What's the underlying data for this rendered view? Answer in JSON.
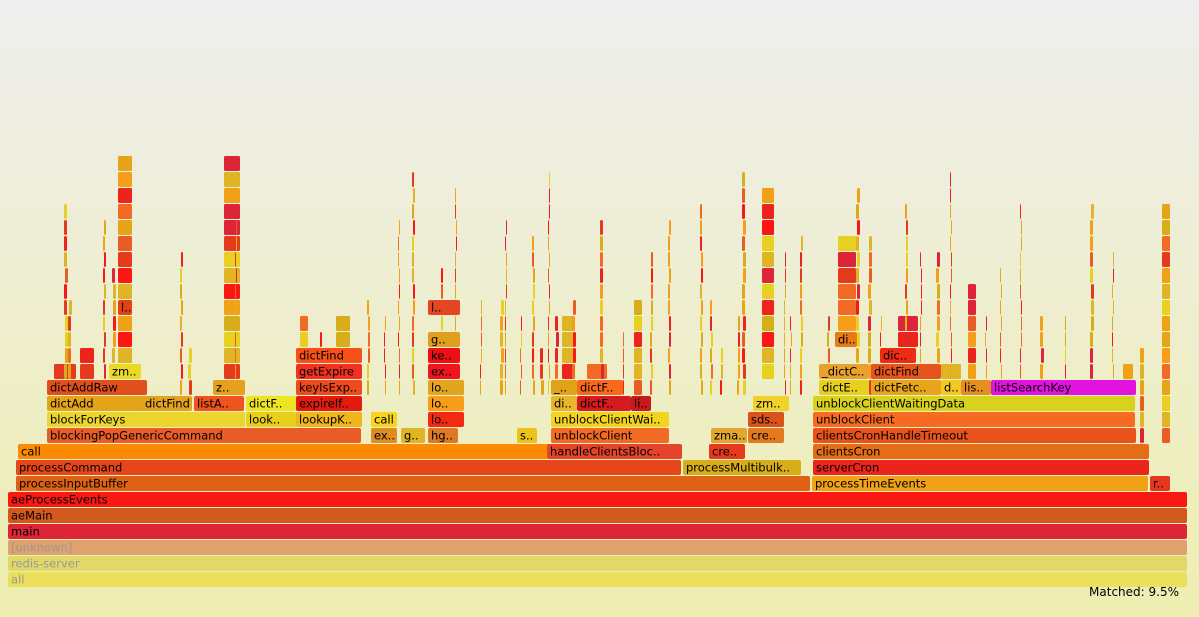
{
  "graph": {
    "matched": "Matched: 9.5%",
    "frames": [
      {
        "label": "all",
        "color": "#ecdf5b",
        "dim": true
      },
      {
        "label": "redis-server",
        "color": "#e0d96a",
        "dim": true
      },
      {
        "label": "[unknown]",
        "color": "#e0a16c",
        "dim": true
      },
      {
        "label": "main",
        "color": "#dd2537"
      },
      {
        "label": "aeMain",
        "color": "#d2591d"
      },
      {
        "label": "aeProcessEvents",
        "color": "#fb1714"
      },
      {
        "label": "processInputBuffer",
        "color": "#df6113"
      },
      {
        "label": "processTimeEvents",
        "color": "#f0a116"
      },
      {
        "label": "r..",
        "color": "#e5361e"
      },
      {
        "label": "processCommand",
        "color": "#e7461b"
      },
      {
        "label": "processMultibulk..",
        "color": "#d8ad1a"
      },
      {
        "label": "serverCron",
        "color": "#ec241c"
      },
      {
        "label": "call",
        "color": "#fc8a04"
      },
      {
        "label": "handleClientsBloc..",
        "color": "#e5442a"
      },
      {
        "label": "cre..",
        "color": "#e53a1c"
      },
      {
        "label": "clientsCron",
        "color": "#e66d18"
      },
      {
        "label": "blockingPopGenericCommand",
        "color": "#e95c25"
      },
      {
        "label": "ex..",
        "color": "#df8c25"
      },
      {
        "label": "g..",
        "color": "#dfb425"
      },
      {
        "label": "hg..",
        "color": "#dd7924"
      },
      {
        "label": "s..",
        "color": "#edc21a"
      },
      {
        "label": "unblockClient",
        "color": "#f26a24"
      },
      {
        "label": "zma..",
        "color": "#e3a730"
      },
      {
        "label": "cre..",
        "color": "#e47a20"
      },
      {
        "label": "clientsCronHandleTimeout",
        "color": "#e8531c"
      },
      {
        "label": "blockForKeys",
        "color": "#ecd52c"
      },
      {
        "label": "look..",
        "color": "#e9cf19"
      },
      {
        "label": "lookupK..",
        "color": "#f0b41d"
      },
      {
        "label": "call",
        "color": "#f9d41d"
      },
      {
        "label": "lo..",
        "color": "#f22a13"
      },
      {
        "label": "unblockClientWai..",
        "color": "#f3d31c"
      },
      {
        "label": "sds..",
        "color": "#dc521b"
      },
      {
        "label": "unblockClient",
        "color": "#f76a22"
      },
      {
        "label": "dictAdd",
        "color": "#e6a418"
      },
      {
        "label": "dictFind",
        "color": "#e3a31e"
      },
      {
        "label": "listA..",
        "color": "#f0541d"
      },
      {
        "label": "dictF..",
        "color": "#ede424"
      },
      {
        "label": "expireIf..",
        "color": "#e41a0e"
      },
      {
        "label": "lo..",
        "color": "#f89d18"
      },
      {
        "label": "di..",
        "color": "#e8b52b"
      },
      {
        "label": "dictF..",
        "color": "#d51b1e"
      },
      {
        "label": "li..",
        "color": "#c81a1a"
      },
      {
        "label": "zm..",
        "color": "#f0d22b"
      },
      {
        "label": "unblockClientWaitingData",
        "color": "#d9d21c"
      },
      {
        "label": "dictAddRaw",
        "color": "#e14f1c"
      },
      {
        "label": "z..",
        "color": "#e5a020"
      },
      {
        "label": "keyIsExp..",
        "color": "#ef4a1d"
      },
      {
        "label": "lo..",
        "color": "#e3a420"
      },
      {
        "label": "_..",
        "color": "#e0a218"
      },
      {
        "label": "dictF..",
        "color": "#f8681d"
      },
      {
        "label": "dictE..",
        "color": "#e8d020"
      },
      {
        "label": "dictFetc..",
        "color": "#e8a41b"
      },
      {
        "label": "d..",
        "color": "#f3c820"
      },
      {
        "label": "lis..",
        "color": "#e38f22"
      },
      {
        "label": "listSearchKey",
        "color": "#e212df"
      },
      {
        "label": "zm..",
        "color": "#eada25"
      },
      {
        "label": "getExpire",
        "color": "#f23123"
      },
      {
        "label": "ex..",
        "color": "#ef151c"
      },
      {
        "label": "_dictC..",
        "color": "#e8a12c"
      },
      {
        "label": "dictFind",
        "color": "#e6541e"
      },
      {
        "label": "dictFind",
        "color": "#f95019"
      },
      {
        "label": "ke..",
        "color": "#ec1014"
      },
      {
        "label": "dic..",
        "color": "#ee2b13"
      },
      {
        "label": "g..",
        "color": "#df9f1c"
      },
      {
        "label": "di..",
        "color": "#e87917"
      },
      {
        "label": "l..",
        "color": "#e34213"
      },
      {
        "label": "l..",
        "color": "#e44523"
      }
    ]
  }
}
